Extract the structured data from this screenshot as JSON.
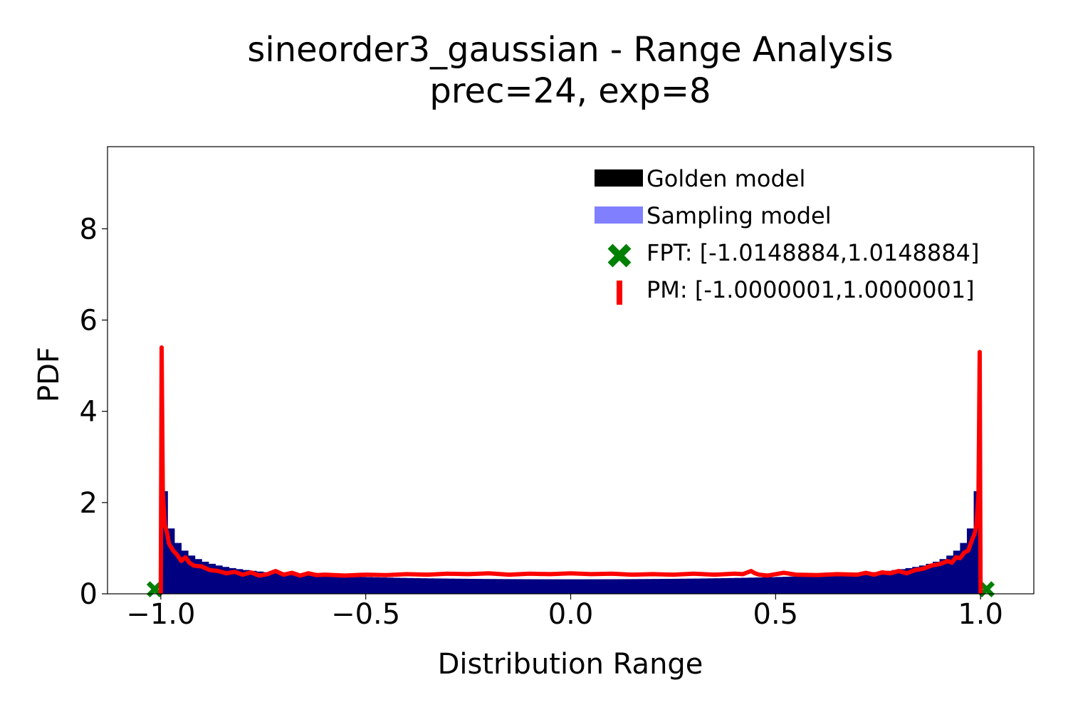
{
  "chart_data": {
    "type": "histogram+line",
    "title_line1": "sineorder3_gaussian - Range Analysis",
    "title_line2": "prec=24, exp=8",
    "xlabel": "Distribution Range",
    "ylabel": "PDF",
    "xlim": [
      -1.13,
      1.13
    ],
    "ylim": [
      0,
      9.8
    ],
    "x_ticks": [
      -1.0,
      -0.5,
      0.0,
      0.5,
      1.0
    ],
    "x_tick_labels": [
      "−1.0",
      "−0.5",
      "0.0",
      "0.5",
      "1.0"
    ],
    "y_ticks": [
      0,
      2,
      4,
      6,
      8
    ],
    "y_tick_labels": [
      "0",
      "2",
      "4",
      "6",
      "8"
    ],
    "grid": false,
    "legend_position": "top-right",
    "legend": [
      {
        "label": "Golden model",
        "color": "#000000",
        "marker": "patch"
      },
      {
        "label": "Sampling model",
        "color": "#8080ff",
        "marker": "patch"
      },
      {
        "label": "FPT: [-1.0148884,1.0148884]",
        "color": "#008000",
        "marker": "X"
      },
      {
        "label": "PM: [-1.0000001,1.0000001]",
        "color": "#ff0000",
        "marker": "line"
      }
    ],
    "colors": {
      "golden": "#000000",
      "sampling": "#8080ff",
      "overlap": "#000080",
      "fpt": "#008000",
      "pm": "#ff0000"
    },
    "fpt_range": [
      -1.0148884,
      1.0148884
    ],
    "fpt_marker_y": 0.1,
    "pm_range": [
      -1.0000001,
      1.0000001
    ],
    "histogram": {
      "bin_edges_range": [
        -1.0,
        1.0
      ],
      "bins": 120,
      "golden_edge_value": 2.25,
      "interior_note": "approx arcsine-like density"
    },
    "pm_curve": {
      "x": [
        -1.0,
        -0.998,
        -0.995,
        -0.99,
        -0.985,
        -0.98,
        -0.97,
        -0.96,
        -0.95,
        -0.94,
        -0.93,
        -0.92,
        -0.9,
        -0.88,
        -0.86,
        -0.84,
        -0.82,
        -0.8,
        -0.78,
        -0.76,
        -0.74,
        -0.72,
        -0.7,
        -0.68,
        -0.66,
        -0.64,
        -0.62,
        -0.6,
        -0.55,
        -0.5,
        -0.45,
        -0.4,
        -0.35,
        -0.3,
        -0.25,
        -0.2,
        -0.15,
        -0.1,
        -0.05,
        0.0,
        0.05,
        0.1,
        0.15,
        0.2,
        0.25,
        0.3,
        0.35,
        0.4,
        0.42,
        0.44,
        0.45,
        0.46,
        0.48,
        0.5,
        0.52,
        0.55,
        0.6,
        0.65,
        0.7,
        0.72,
        0.74,
        0.76,
        0.78,
        0.8,
        0.82,
        0.84,
        0.86,
        0.88,
        0.9,
        0.92,
        0.93,
        0.94,
        0.95,
        0.96,
        0.97,
        0.98,
        0.985,
        0.99,
        0.995,
        0.998,
        1.0
      ],
      "y": [
        0.0,
        5.4,
        2.2,
        1.5,
        1.35,
        1.1,
        0.95,
        0.85,
        0.72,
        0.8,
        0.68,
        0.62,
        0.6,
        0.52,
        0.5,
        0.45,
        0.48,
        0.42,
        0.47,
        0.4,
        0.43,
        0.5,
        0.42,
        0.46,
        0.4,
        0.45,
        0.41,
        0.42,
        0.4,
        0.42,
        0.41,
        0.43,
        0.42,
        0.44,
        0.43,
        0.45,
        0.42,
        0.44,
        0.43,
        0.45,
        0.43,
        0.44,
        0.42,
        0.43,
        0.42,
        0.44,
        0.42,
        0.44,
        0.43,
        0.5,
        0.45,
        0.42,
        0.4,
        0.43,
        0.46,
        0.42,
        0.41,
        0.43,
        0.42,
        0.46,
        0.42,
        0.47,
        0.45,
        0.5,
        0.45,
        0.52,
        0.55,
        0.62,
        0.65,
        0.72,
        0.68,
        0.8,
        0.78,
        0.9,
        0.95,
        1.2,
        1.3,
        1.5,
        2.2,
        5.3,
        0.0
      ]
    }
  }
}
